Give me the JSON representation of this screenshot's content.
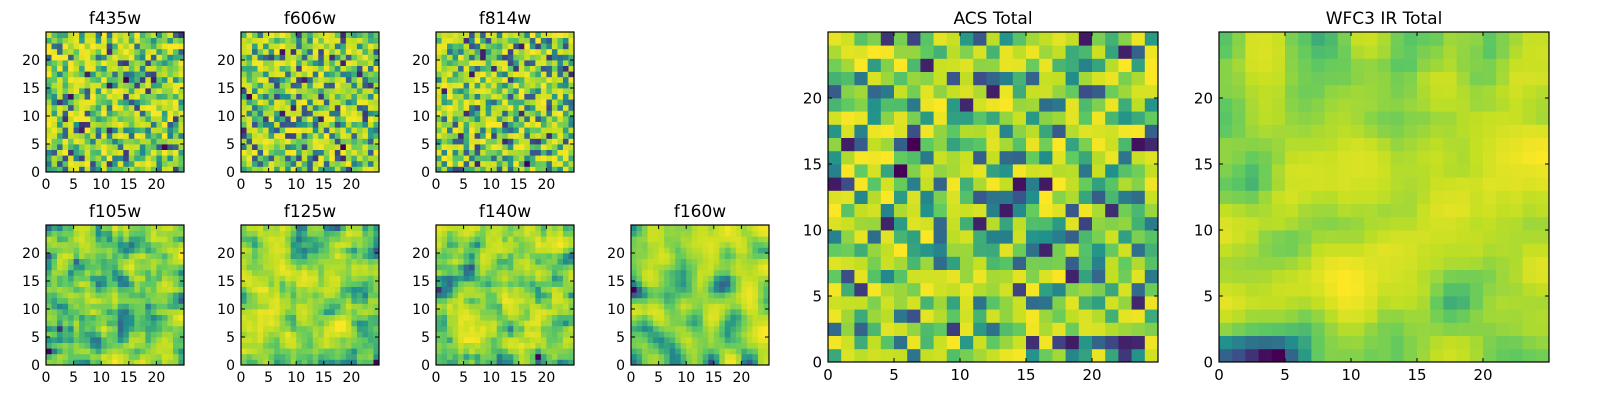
{
  "chart_data": [
    {
      "type": "heatmap",
      "title": "f435w",
      "xticks": [
        0,
        5,
        10,
        15,
        20
      ],
      "yticks": [
        0,
        5,
        10,
        15,
        20
      ],
      "xlim": [
        0,
        25
      ],
      "ylim": [
        0,
        25
      ],
      "grid": false,
      "seed": 11,
      "smooth": 0
    },
    {
      "type": "heatmap",
      "title": "f606w",
      "xticks": [
        0,
        5,
        10,
        15,
        20
      ],
      "yticks": [
        0,
        5,
        10,
        15,
        20
      ],
      "xlim": [
        0,
        25
      ],
      "ylim": [
        0,
        25
      ],
      "grid": false,
      "seed": 23,
      "smooth": 0
    },
    {
      "type": "heatmap",
      "title": "f814w",
      "xticks": [
        0,
        5,
        10,
        15,
        20
      ],
      "yticks": [
        0,
        5,
        10,
        15,
        20
      ],
      "xlim": [
        0,
        25
      ],
      "ylim": [
        0,
        25
      ],
      "grid": false,
      "seed": 37,
      "smooth": 0
    },
    {
      "type": "heatmap",
      "title": "f105w",
      "xticks": [
        0,
        5,
        10,
        15,
        20
      ],
      "yticks": [
        0,
        5,
        10,
        15,
        20
      ],
      "xlim": [
        0,
        25
      ],
      "ylim": [
        0,
        25
      ],
      "grid": false,
      "seed": 41,
      "smooth": 1
    },
    {
      "type": "heatmap",
      "title": "f125w",
      "xticks": [
        0,
        5,
        10,
        15,
        20
      ],
      "yticks": [
        0,
        5,
        10,
        15,
        20
      ],
      "xlim": [
        0,
        25
      ],
      "ylim": [
        0,
        25
      ],
      "grid": false,
      "seed": 53,
      "smooth": 1
    },
    {
      "type": "heatmap",
      "title": "f140w",
      "xticks": [
        0,
        5,
        10,
        15,
        20
      ],
      "yticks": [
        0,
        5,
        10,
        15,
        20
      ],
      "xlim": [
        0,
        25
      ],
      "ylim": [
        0,
        25
      ],
      "grid": false,
      "seed": 67,
      "smooth": 1
    },
    {
      "type": "heatmap",
      "title": "f160w",
      "xticks": [
        0,
        5,
        10,
        15,
        20
      ],
      "yticks": [
        0,
        5,
        10,
        15,
        20
      ],
      "xlim": [
        0,
        25
      ],
      "ylim": [
        0,
        25
      ],
      "grid": false,
      "seed": 79,
      "smooth": 2
    },
    {
      "type": "heatmap",
      "title": "ACS Total",
      "xticks": [
        0,
        5,
        10,
        15,
        20
      ],
      "yticks": [
        0,
        5,
        10,
        15,
        20
      ],
      "xlim": [
        0,
        25
      ],
      "ylim": [
        0,
        25
      ],
      "grid": false,
      "seed": 83,
      "smooth": 0
    },
    {
      "type": "heatmap",
      "title": "WFC3 IR Total",
      "xticks": [
        0,
        5,
        10,
        15,
        20
      ],
      "yticks": [
        0,
        5,
        10,
        15,
        20
      ],
      "xlim": [
        0,
        25
      ],
      "ylim": [
        0,
        25
      ],
      "grid": false,
      "seed": 97,
      "smooth": 2
    }
  ],
  "colormap": [
    "#440154",
    "#3b528b",
    "#21918c",
    "#5ec962",
    "#c2df23",
    "#fde725"
  ]
}
